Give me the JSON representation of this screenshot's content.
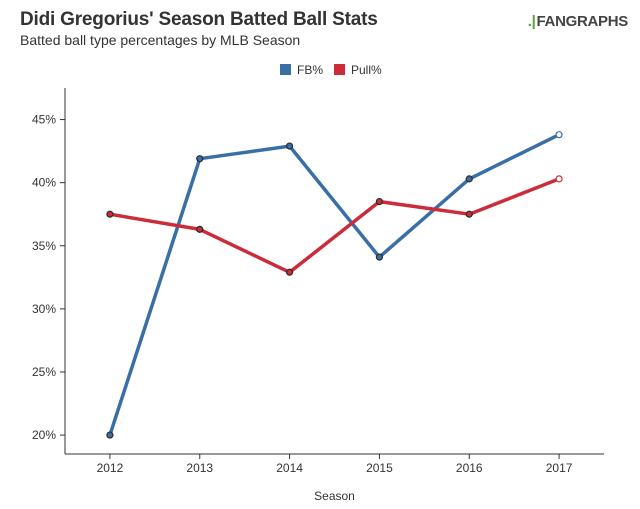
{
  "header": {
    "title": "Didi Gregorius' Season Batted Ball Stats",
    "subtitle": "Batted ball type percentages by MLB Season",
    "logo_text": "FANGRAPHS",
    "logo_mark": ".|"
  },
  "chart_data": {
    "type": "line",
    "title": "Didi Gregorius' Season Batted Ball Stats",
    "subtitle": "Batted ball type percentages by MLB Season",
    "xlabel": "Season",
    "ylabel": "",
    "categories": [
      "2012",
      "2013",
      "2014",
      "2015",
      "2016",
      "2017"
    ],
    "ylim": [
      18.5,
      47.5
    ],
    "yticks": [
      20,
      25,
      30,
      35,
      40,
      45
    ],
    "ytick_labels": [
      "20%",
      "25%",
      "30%",
      "35%",
      "40%",
      "45%"
    ],
    "grid": false,
    "legend_position": "top-center",
    "series": [
      {
        "name": "FB%",
        "color": "#3a6fa6",
        "values": [
          20.0,
          41.9,
          42.9,
          34.1,
          40.3,
          43.8
        ]
      },
      {
        "name": "Pull%",
        "color": "#cc2b3a",
        "values": [
          37.5,
          36.3,
          32.9,
          38.5,
          37.5,
          40.3
        ]
      }
    ]
  }
}
